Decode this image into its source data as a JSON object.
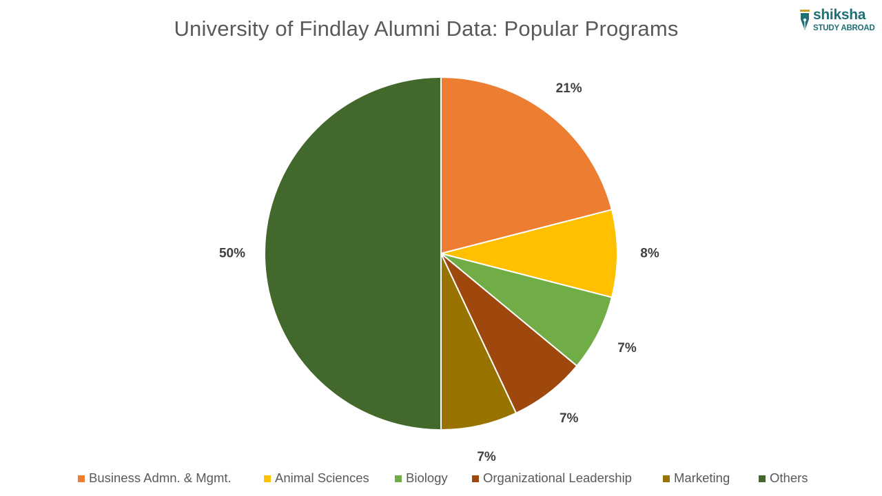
{
  "title": "University of Findlay Alumni Data: Popular Programs",
  "logo": {
    "top_text": "shiksha",
    "bottom_text": "STUDY ABROAD",
    "color": "#1f6f75"
  },
  "chart_data": {
    "type": "pie",
    "title": "University of Findlay Alumni Data: Popular Programs",
    "start_angle_deg": 0,
    "direction": "clockwise",
    "legend_position": "bottom",
    "slices": [
      {
        "name": "Business Admn. & Mgmt.",
        "value": 21,
        "label": "21%",
        "color": "#ED7D31"
      },
      {
        "name": "Animal Sciences",
        "value": 8,
        "label": "8%",
        "color": "#FFC000"
      },
      {
        "name": "Biology",
        "value": 7,
        "label": "7%",
        "color": "#70AD47"
      },
      {
        "name": "Organizational Leadership",
        "value": 7,
        "label": "7%",
        "color": "#9E480E"
      },
      {
        "name": "Marketing",
        "value": 7,
        "label": "7%",
        "color": "#997300"
      },
      {
        "name": "Others",
        "value": 50,
        "label": "50%",
        "color": "#43682B"
      }
    ]
  }
}
